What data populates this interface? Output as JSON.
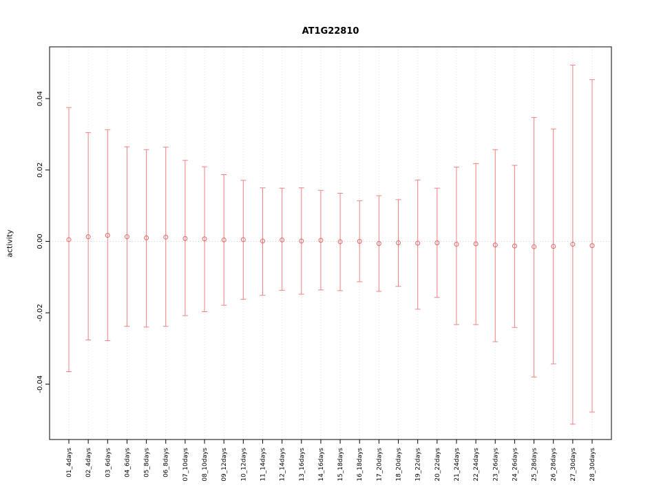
{
  "title": "AT1G22810",
  "ylabel": "activity",
  "colors": {
    "errorbar": "#f28080",
    "point": "#e06666",
    "grid": "#e2e2e2",
    "zero_line": "#c8c8c8",
    "axis": "#000000"
  },
  "chart_data": {
    "type": "scatter",
    "subtype": "points-with-error-bars",
    "title": "AT1G22810",
    "xlabel": "",
    "ylabel": "activity",
    "legend": "none",
    "grid": "dotted-vertical-per-category-and-zero-line",
    "ylim": [
      -0.0555,
      0.0545
    ],
    "yticks": [
      -0.04,
      -0.02,
      0.0,
      0.02,
      0.04
    ],
    "categories": [
      "01_4days",
      "02_4days",
      "03_6days",
      "04_6days",
      "05_8days",
      "06_8days",
      "07_10days",
      "08_10days",
      "09_12days",
      "10_12days",
      "11_14days",
      "12_14days",
      "13_16days",
      "14_16days",
      "15_18days",
      "16_18days",
      "17_20days",
      "18_20days",
      "19_22days",
      "20_22days",
      "21_24days",
      "22_24days",
      "23_26days",
      "24_26days",
      "25_28days",
      "26_28days",
      "27_30days",
      "28_30days"
    ],
    "center": [
      0.0005,
      0.0013,
      0.0017,
      0.0013,
      0.001,
      0.0012,
      0.0008,
      0.0007,
      0.0004,
      0.0005,
      0.0001,
      0.0004,
      0.0001,
      0.0003,
      -0.0001,
      0.0,
      -0.0006,
      -0.0004,
      -0.0005,
      -0.0004,
      -0.0008,
      -0.0007,
      -0.001,
      -0.0013,
      -0.0015,
      -0.0014,
      -0.0008,
      -0.0012
    ],
    "upper": [
      0.0375,
      0.0305,
      0.0313,
      0.0265,
      0.0257,
      0.0264,
      0.0227,
      0.0209,
      0.0187,
      0.0171,
      0.015,
      0.0149,
      0.015,
      0.0143,
      0.0135,
      0.0114,
      0.0128,
      0.0117,
      0.0172,
      0.0149,
      0.0208,
      0.0218,
      0.0257,
      0.0213,
      0.0347,
      0.0315,
      0.0494,
      0.0453
    ],
    "lower": [
      -0.0365,
      -0.0276,
      -0.0278,
      -0.0238,
      -0.024,
      -0.0238,
      -0.0208,
      -0.0197,
      -0.0179,
      -0.0162,
      -0.0151,
      -0.0137,
      -0.0148,
      -0.0136,
      -0.0138,
      -0.0113,
      -0.014,
      -0.0126,
      -0.019,
      -0.0157,
      -0.0233,
      -0.0233,
      -0.0281,
      -0.0241,
      -0.038,
      -0.0343,
      -0.0512,
      -0.0478
    ]
  }
}
